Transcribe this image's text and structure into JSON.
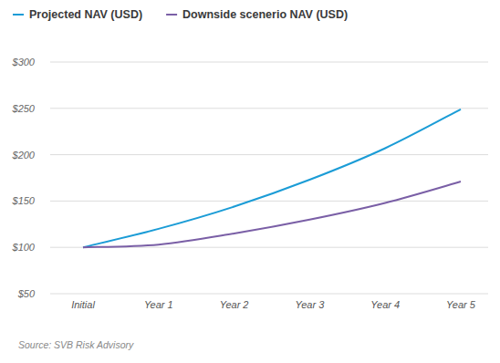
{
  "chart_data": {
    "type": "line",
    "categories": [
      "Initial",
      "Year 1",
      "Year 2",
      "Year 3",
      "Year 4",
      "Year 5"
    ],
    "series": [
      {
        "name": "Projected NAV (USD)",
        "color": "#1b9cd6",
        "values": [
          100,
          120,
          144,
          173,
          207,
          249
        ]
      },
      {
        "name": "Downside scenerio NAV (USD)",
        "color": "#7a5fa6",
        "values": [
          100,
          103,
          115,
          130,
          148,
          171
        ]
      }
    ],
    "ylim": [
      50,
      300
    ],
    "yticks": [
      {
        "value": 50,
        "label": "$50"
      },
      {
        "value": 100,
        "label": "$100"
      },
      {
        "value": 150,
        "label": "$150"
      },
      {
        "value": 200,
        "label": "$200"
      },
      {
        "value": 250,
        "label": "$250"
      },
      {
        "value": 300,
        "label": "$300"
      }
    ],
    "grid": true,
    "legend": "top",
    "annotations": [
      "Source: SVB Risk Advisory"
    ]
  }
}
